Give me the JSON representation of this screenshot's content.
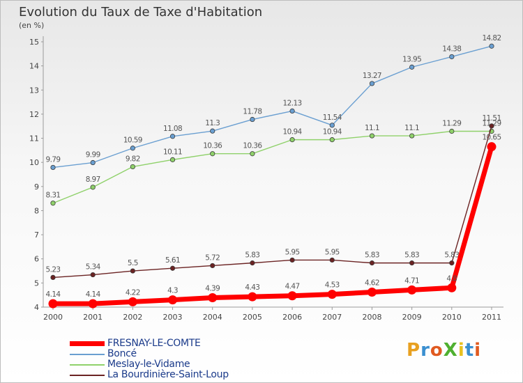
{
  "title": "Evolution du Taux de Taxe d'Habitation",
  "unit_label": "(en %)",
  "logo_text": "ProXiti",
  "colors": {
    "fresnay": "#ff0000",
    "bonce": "#6a9fd1",
    "meslay": "#8fd16a",
    "bourdiniere": "#6b2323"
  },
  "legend": [
    {
      "label": "FRESNAY-LE-COMTE",
      "color": "#ff0000"
    },
    {
      "label": "Boncé",
      "color": "#6a9fd1"
    },
    {
      "label": "Meslay-le-Vidame",
      "color": "#8fd16a"
    },
    {
      "label": "La Bourdinière-Saint-Loup",
      "color": "#6b2323"
    }
  ],
  "chart_data": {
    "type": "line",
    "title": "Evolution du Taux de Taxe d'Habitation",
    "ylabel": "(en %)",
    "xlabel": "",
    "x": [
      "2000",
      "2001",
      "2002",
      "2003",
      "2004",
      "2005",
      "2006",
      "2007",
      "2008",
      "2009",
      "2010",
      "2011"
    ],
    "ylim": [
      4,
      15
    ],
    "yticks": [
      4,
      5,
      6,
      7,
      8,
      9,
      10,
      11,
      12,
      13,
      14,
      15
    ],
    "grid": false,
    "legend_position": "bottom-left",
    "series": [
      {
        "name": "FRESNAY-LE-COMTE",
        "color": "#ff0000",
        "values": [
          4.14,
          4.14,
          4.22,
          4.3,
          4.39,
          4.43,
          4.47,
          4.53,
          4.62,
          4.71,
          4.8,
          10.65
        ],
        "labels": [
          "4.14",
          "4.14",
          "4.22",
          "4.3",
          "4.39",
          "4.43",
          "4.47",
          "4.53",
          "4.62",
          "4.71",
          "4.8",
          "10.65"
        ]
      },
      {
        "name": "Boncé",
        "color": "#6a9fd1",
        "values": [
          9.79,
          9.99,
          10.59,
          11.08,
          11.3,
          11.78,
          12.13,
          11.54,
          13.27,
          13.95,
          14.38,
          14.82
        ],
        "labels": [
          "9.79",
          "9.99",
          "10.59",
          "11.08",
          "11.3",
          "11.78",
          "12.13",
          "11.54",
          "13.27",
          "13.95",
          "14.38",
          "14.82"
        ]
      },
      {
        "name": "Meslay-le-Vidame",
        "color": "#8fd16a",
        "values": [
          8.31,
          8.97,
          9.82,
          10.11,
          10.36,
          10.36,
          10.94,
          10.94,
          11.1,
          11.1,
          11.29,
          11.29
        ],
        "labels": [
          "8.31",
          "8.97",
          "9.82",
          "10.11",
          "10.36",
          "10.36",
          "10.94",
          "10.94",
          "11.1",
          "11.1",
          "11.29",
          "11.29"
        ]
      },
      {
        "name": "La Bourdinière-Saint-Loup",
        "color": "#6b2323",
        "values": [
          5.23,
          5.34,
          5.5,
          5.61,
          5.72,
          5.83,
          5.95,
          5.95,
          5.83,
          5.83,
          5.83,
          11.51
        ],
        "labels": [
          "5.23",
          "5.34",
          "5.5",
          "5.61",
          "5.72",
          "5.83",
          "5.95",
          "5.95",
          "5.83",
          "5.83",
          "5.83",
          "11.51"
        ]
      }
    ]
  }
}
